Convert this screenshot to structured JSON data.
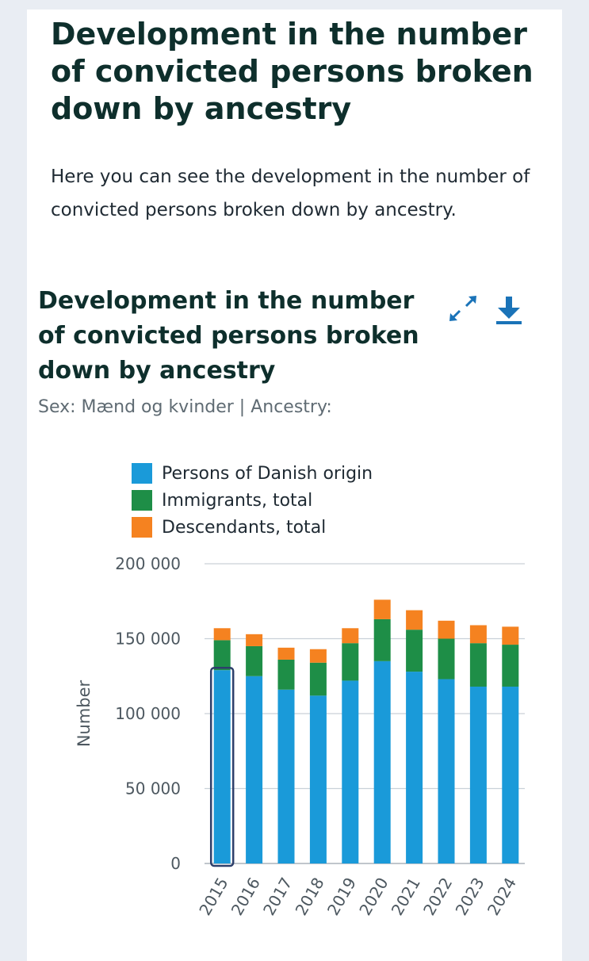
{
  "page": {
    "title": "Development in the number of convicted persons broken down by ancestry",
    "intro": "Here you can see the development in the number of convicted persons broken down by ancestry."
  },
  "chart_header": {
    "title": "Development in the number of convicted persons broken down by ancestry",
    "subtitle": "Sex: Mænd og kvinder | Ancestry:",
    "expand_icon": "expand-arrows-icon",
    "download_icon": "download-icon"
  },
  "colors": {
    "danish": "#1a9ad9",
    "immigrants": "#1e8e47",
    "descendants": "#f58220",
    "accent": "#1a73b8",
    "title": "#0e2f2c",
    "highlight": "#2d3f6b"
  },
  "chart_data": {
    "type": "bar",
    "stacked": true,
    "title": "Development in the number of convicted persons broken down by ancestry",
    "xlabel": "",
    "ylabel": "Number",
    "ylim": [
      0,
      200000
    ],
    "y_ticks": [
      0,
      50000,
      100000,
      150000,
      200000
    ],
    "y_tick_labels": [
      "0",
      "50 000",
      "100 000",
      "150 000",
      "200 000"
    ],
    "categories": [
      "2015",
      "2016",
      "2017",
      "2018",
      "2019",
      "2020",
      "2021",
      "2022",
      "2023",
      "2024"
    ],
    "highlighted_category": "2015",
    "legend_position": "top",
    "series": [
      {
        "name": "Persons of Danish origin",
        "color_key": "danish",
        "values": [
          129000,
          125000,
          116000,
          112000,
          122000,
          135000,
          128000,
          123000,
          118000,
          118000
        ]
      },
      {
        "name": "Immigrants, total",
        "color_key": "immigrants",
        "values": [
          20000,
          20000,
          20000,
          22000,
          25000,
          28000,
          28000,
          27000,
          29000,
          28000
        ]
      },
      {
        "name": "Descendants, total",
        "color_key": "descendants",
        "values": [
          8000,
          8000,
          8000,
          9000,
          10000,
          13000,
          13000,
          12000,
          12000,
          12000
        ]
      }
    ]
  }
}
